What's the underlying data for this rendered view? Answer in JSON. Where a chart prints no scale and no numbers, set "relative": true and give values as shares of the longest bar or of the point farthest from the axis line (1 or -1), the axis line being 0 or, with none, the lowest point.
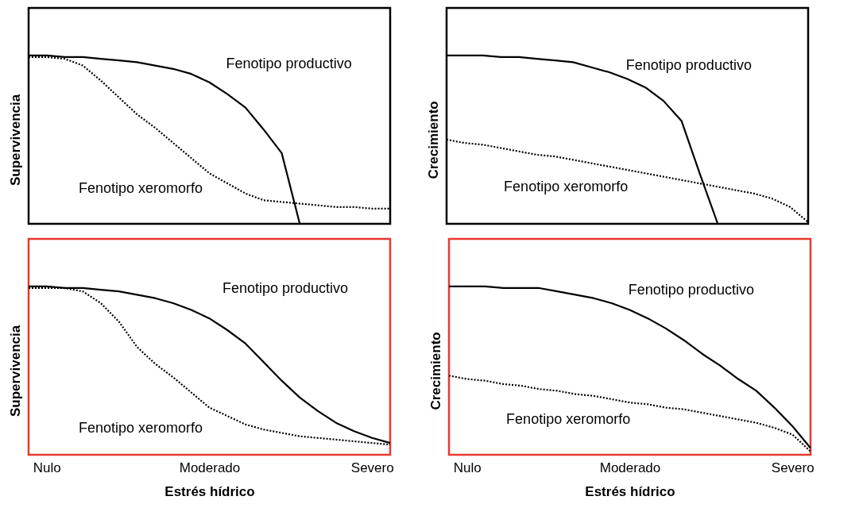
{
  "chart_data": [
    {
      "type": "line",
      "relative": true,
      "ylabel": "Supervivencia",
      "grid": false,
      "categories": [
        null,
        null,
        null,
        null,
        null,
        null,
        null,
        null,
        null,
        null,
        null,
        null,
        null,
        null,
        null,
        null,
        null,
        null,
        null,
        null,
        null
      ],
      "series": [
        {
          "color": "#000000",
          "line_style": "solid",
          "values": [
            1,
            1,
            0.99,
            0.99,
            0.98,
            0.97,
            0.96,
            0.94,
            0.92,
            0.89,
            0.84,
            0.77,
            0.69,
            0.56,
            0.42,
            0,
            null,
            null,
            null,
            null,
            null
          ]
        },
        {
          "color": "#000000",
          "line_style": "dotted",
          "values": [
            0.99,
            0.99,
            0.98,
            0.94,
            0.85,
            0.75,
            0.65,
            0.57,
            0.48,
            0.39,
            0.3,
            0.24,
            0.18,
            0.14,
            0.13,
            0.12,
            0.11,
            0.1,
            0.1,
            0.09,
            0.09
          ]
        }
      ],
      "annotations": [
        "Fenotipo productivo",
        "Fenotipo xeromorfo"
      ]
    },
    {
      "type": "line",
      "relative": true,
      "ylabel": "Crecimiento",
      "grid": false,
      "categories": [
        null,
        null,
        null,
        null,
        null,
        null,
        null,
        null,
        null,
        null,
        null,
        null,
        null,
        null,
        null,
        null,
        null,
        null,
        null,
        null,
        null
      ],
      "series": [
        {
          "color": "#000000",
          "line_style": "solid",
          "values": [
            1,
            1,
            1,
            0.99,
            0.99,
            0.98,
            0.97,
            0.96,
            0.93,
            0.9,
            0.86,
            0.81,
            0.73,
            0.61,
            0.3,
            0,
            null,
            null,
            null,
            null,
            null
          ]
        },
        {
          "color": "#000000",
          "line_style": "dotted",
          "values": [
            0.5,
            0.48,
            0.47,
            0.45,
            0.43,
            0.41,
            0.4,
            0.38,
            0.36,
            0.34,
            0.32,
            0.3,
            0.28,
            0.26,
            0.24,
            0.22,
            0.2,
            0.18,
            0.15,
            0.1,
            0.01
          ]
        }
      ],
      "annotations": [
        "Fenotipo productivo",
        "Fenotipo xeromorfo"
      ]
    },
    {
      "type": "line",
      "relative": true,
      "ylabel": "Supervivencia",
      "xlabel": "Estrés hídrico",
      "grid": false,
      "categories": [
        null,
        "Nulo",
        null,
        null,
        null,
        null,
        null,
        null,
        null,
        null,
        "Moderado",
        null,
        null,
        null,
        null,
        null,
        null,
        null,
        null,
        "Severo",
        null
      ],
      "series": [
        {
          "color": "#000000",
          "line_style": "solid",
          "values": [
            1,
            1,
            0.99,
            0.99,
            0.98,
            0.97,
            0.95,
            0.93,
            0.9,
            0.86,
            0.81,
            0.74,
            0.66,
            0.55,
            0.44,
            0.34,
            0.26,
            0.19,
            0.14,
            0.1,
            0.07
          ]
        },
        {
          "color": "#000000",
          "line_style": "dotted",
          "values": [
            0.99,
            0.99,
            0.99,
            0.97,
            0.9,
            0.79,
            0.64,
            0.54,
            0.46,
            0.37,
            0.28,
            0.23,
            0.18,
            0.15,
            0.13,
            0.11,
            0.1,
            0.09,
            0.08,
            0.07,
            0.06
          ]
        }
      ],
      "annotations": [
        "Fenotipo productivo",
        "Fenotipo xeromorfo"
      ]
    },
    {
      "type": "line",
      "relative": true,
      "ylabel": "Crecimiento",
      "xlabel": "Estrés hídrico",
      "grid": false,
      "categories": [
        null,
        "Nulo",
        null,
        null,
        null,
        null,
        null,
        null,
        null,
        null,
        "Moderado",
        null,
        null,
        null,
        null,
        null,
        null,
        null,
        null,
        "Severo",
        null
      ],
      "series": [
        {
          "color": "#000000",
          "line_style": "solid",
          "values": [
            1,
            1,
            1,
            0.99,
            0.99,
            0.99,
            0.97,
            0.95,
            0.93,
            0.9,
            0.86,
            0.81,
            0.75,
            0.68,
            0.6,
            0.53,
            0.45,
            0.38,
            0.28,
            0.17,
            0.04
          ]
        },
        {
          "color": "#000000",
          "line_style": "dotted",
          "values": [
            0.47,
            0.45,
            0.44,
            0.42,
            0.41,
            0.39,
            0.38,
            0.36,
            0.35,
            0.33,
            0.31,
            0.3,
            0.28,
            0.27,
            0.25,
            0.23,
            0.21,
            0.19,
            0.16,
            0.12,
            0.02
          ]
        }
      ],
      "annotations": [
        "Fenotipo productivo",
        "Fenotipo xeromorfo"
      ]
    }
  ]
}
